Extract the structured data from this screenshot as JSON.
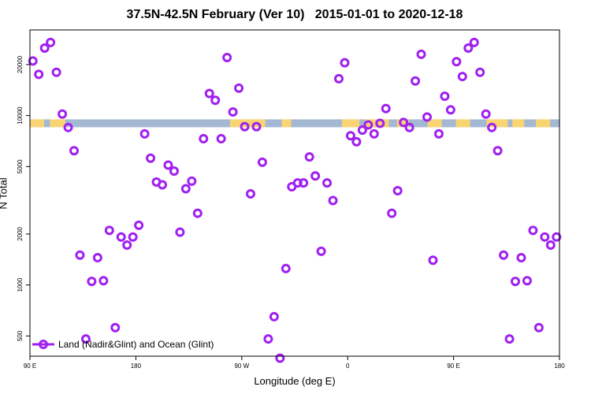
{
  "chart_data": {
    "type": "scatter",
    "title": "37.5N-42.5N February (Ver 10)   2015-01-01 to 2020-12-18",
    "xlabel": "Longitude (deg E)",
    "ylabel": "N Total",
    "y_scale": "log",
    "x_ticks": [
      {
        "value": 90,
        "label": "90 E"
      },
      {
        "value": 180,
        "label": "180"
      },
      {
        "value": 270,
        "label": "90 W"
      },
      {
        "value": 360,
        "label": "0"
      },
      {
        "value": 450,
        "label": "90 E"
      },
      {
        "value": 540,
        "label": "180"
      }
    ],
    "y_ticks": [
      500,
      1000,
      2000,
      5000,
      10000,
      20000
    ],
    "xlim": [
      90,
      540
    ],
    "ylim": [
      380,
      32000
    ],
    "legend": {
      "label": "Land (Nadir&Glint) and Ocean (Glint)",
      "position": "bottom-left"
    },
    "series": [
      {
        "name": "Land (Nadir&Glint) and Ocean (Glint)",
        "color": "#a020f0",
        "x": [
          92.5,
          97.5,
          102.5,
          107.5,
          112.5,
          117.5,
          122.5,
          127.5,
          132.5,
          137.5,
          142.5,
          147.5,
          152.5,
          157.5,
          162.5,
          167.5,
          172.5,
          177.5,
          182.5,
          187.5,
          192.5,
          197.5,
          202.5,
          207.5,
          212.5,
          217.5,
          222.5,
          227.5,
          232.5,
          237.5,
          242.5,
          247.5,
          252.5,
          257.5,
          262.5,
          267.5,
          272.5,
          277.5,
          282.5,
          287.5,
          292.5,
          297.5,
          302.5,
          307.5,
          312.5,
          317.5,
          322.5,
          327.5,
          332.5,
          337.5,
          342.5,
          347.5,
          352.5,
          357.5,
          362.5,
          367.5,
          372.5,
          377.5,
          382.5,
          387.5,
          392.5,
          397.5,
          402.5,
          407.5,
          412.5,
          417.5,
          422.5,
          427.5,
          432.5,
          437.5,
          442.5,
          447.5,
          452.5,
          457.5,
          462.5,
          467.5,
          472.5,
          477.5,
          482.5,
          487.5,
          492.5,
          497.5,
          502.5,
          507.5,
          512.5,
          517.5,
          522.5,
          527.5,
          532.5,
          537.5
        ],
        "y": [
          21000,
          17500,
          25000,
          27000,
          18000,
          10200,
          8500,
          6200,
          1500,
          480,
          1050,
          1450,
          1060,
          2100,
          560,
          1920,
          1720,
          1920,
          2250,
          7800,
          5600,
          4050,
          3900,
          5100,
          4700,
          2050,
          3700,
          4100,
          2650,
          7300,
          13500,
          12300,
          7300,
          22000,
          10500,
          14500,
          8600,
          3450,
          8600,
          5300,
          480,
          650,
          370,
          1250,
          3800,
          4000,
          4000,
          5700,
          4400,
          1580,
          4000,
          3150,
          16500,
          20500,
          7600,
          7000,
          8200,
          8800,
          7800,
          9000,
          11000,
          2650,
          3600,
          9100,
          8500,
          16000,
          23000,
          9800,
          1400,
          7800,
          13000,
          10800,
          20800,
          17000,
          25000,
          27000,
          18000,
          10200,
          8500,
          6200,
          1500,
          480,
          1050,
          1450,
          1060,
          2100,
          560,
          1920,
          1720,
          1920
        ]
      }
    ],
    "band": {
      "y": 9000,
      "colors": {
        "ocean": "#a4b8d4",
        "land": "#f9d472"
      },
      "land_ranges": [
        [
          90,
          102
        ],
        [
          107,
          120
        ],
        [
          260,
          290
        ],
        [
          304,
          312
        ],
        [
          355,
          370
        ],
        [
          375,
          395
        ],
        [
          402,
          412
        ],
        [
          428,
          440
        ],
        [
          452,
          464
        ],
        [
          478,
          496
        ],
        [
          500,
          510
        ],
        [
          520,
          532
        ]
      ]
    }
  }
}
